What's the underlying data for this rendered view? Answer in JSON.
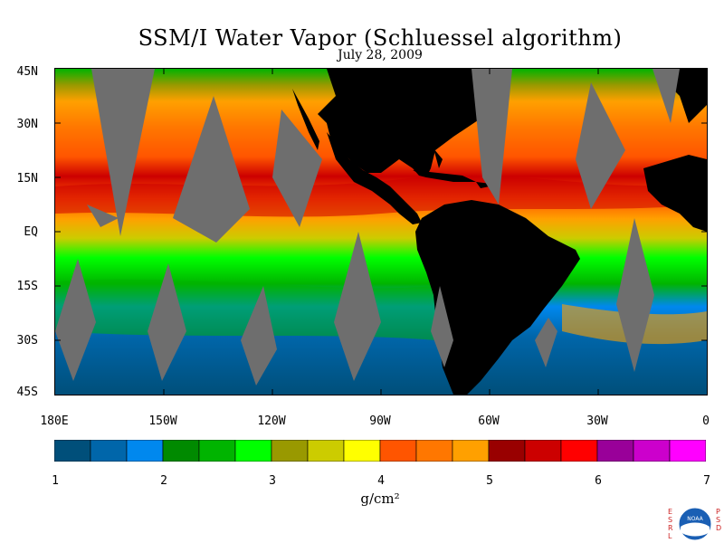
{
  "title": "SSM/I Water Vapor (Schluessel algorithm)",
  "date": "July 28, 2009",
  "lat_labels": [
    "45N",
    "30N",
    "15N",
    "EQ",
    "15S",
    "30S",
    "45S"
  ],
  "lon_labels": [
    "180E",
    "150W",
    "120W",
    "90W",
    "60W",
    "30W",
    "0"
  ],
  "colorbar": {
    "labels": [
      "1",
      "2",
      "3",
      "4",
      "5",
      "6",
      "7"
    ],
    "units": "g/cm²",
    "colors": [
      "#004f7a",
      "#0066aa",
      "#0088ee",
      "#008a00",
      "#00b400",
      "#00ff00",
      "#999900",
      "#cccc00",
      "#ffff00",
      "#ff5500",
      "#ff7700",
      "#ffa000",
      "#990000",
      "#cc0000",
      "#ff0000",
      "#990099",
      "#cc00cc",
      "#ff00ff"
    ]
  },
  "map_colors": {
    "land": "#000000",
    "no_data_swath": "#6e6e6e"
  },
  "logo": {
    "left_letters": "ESRL",
    "right_letters": "PSD",
    "emblem_text": "NOAA"
  }
}
